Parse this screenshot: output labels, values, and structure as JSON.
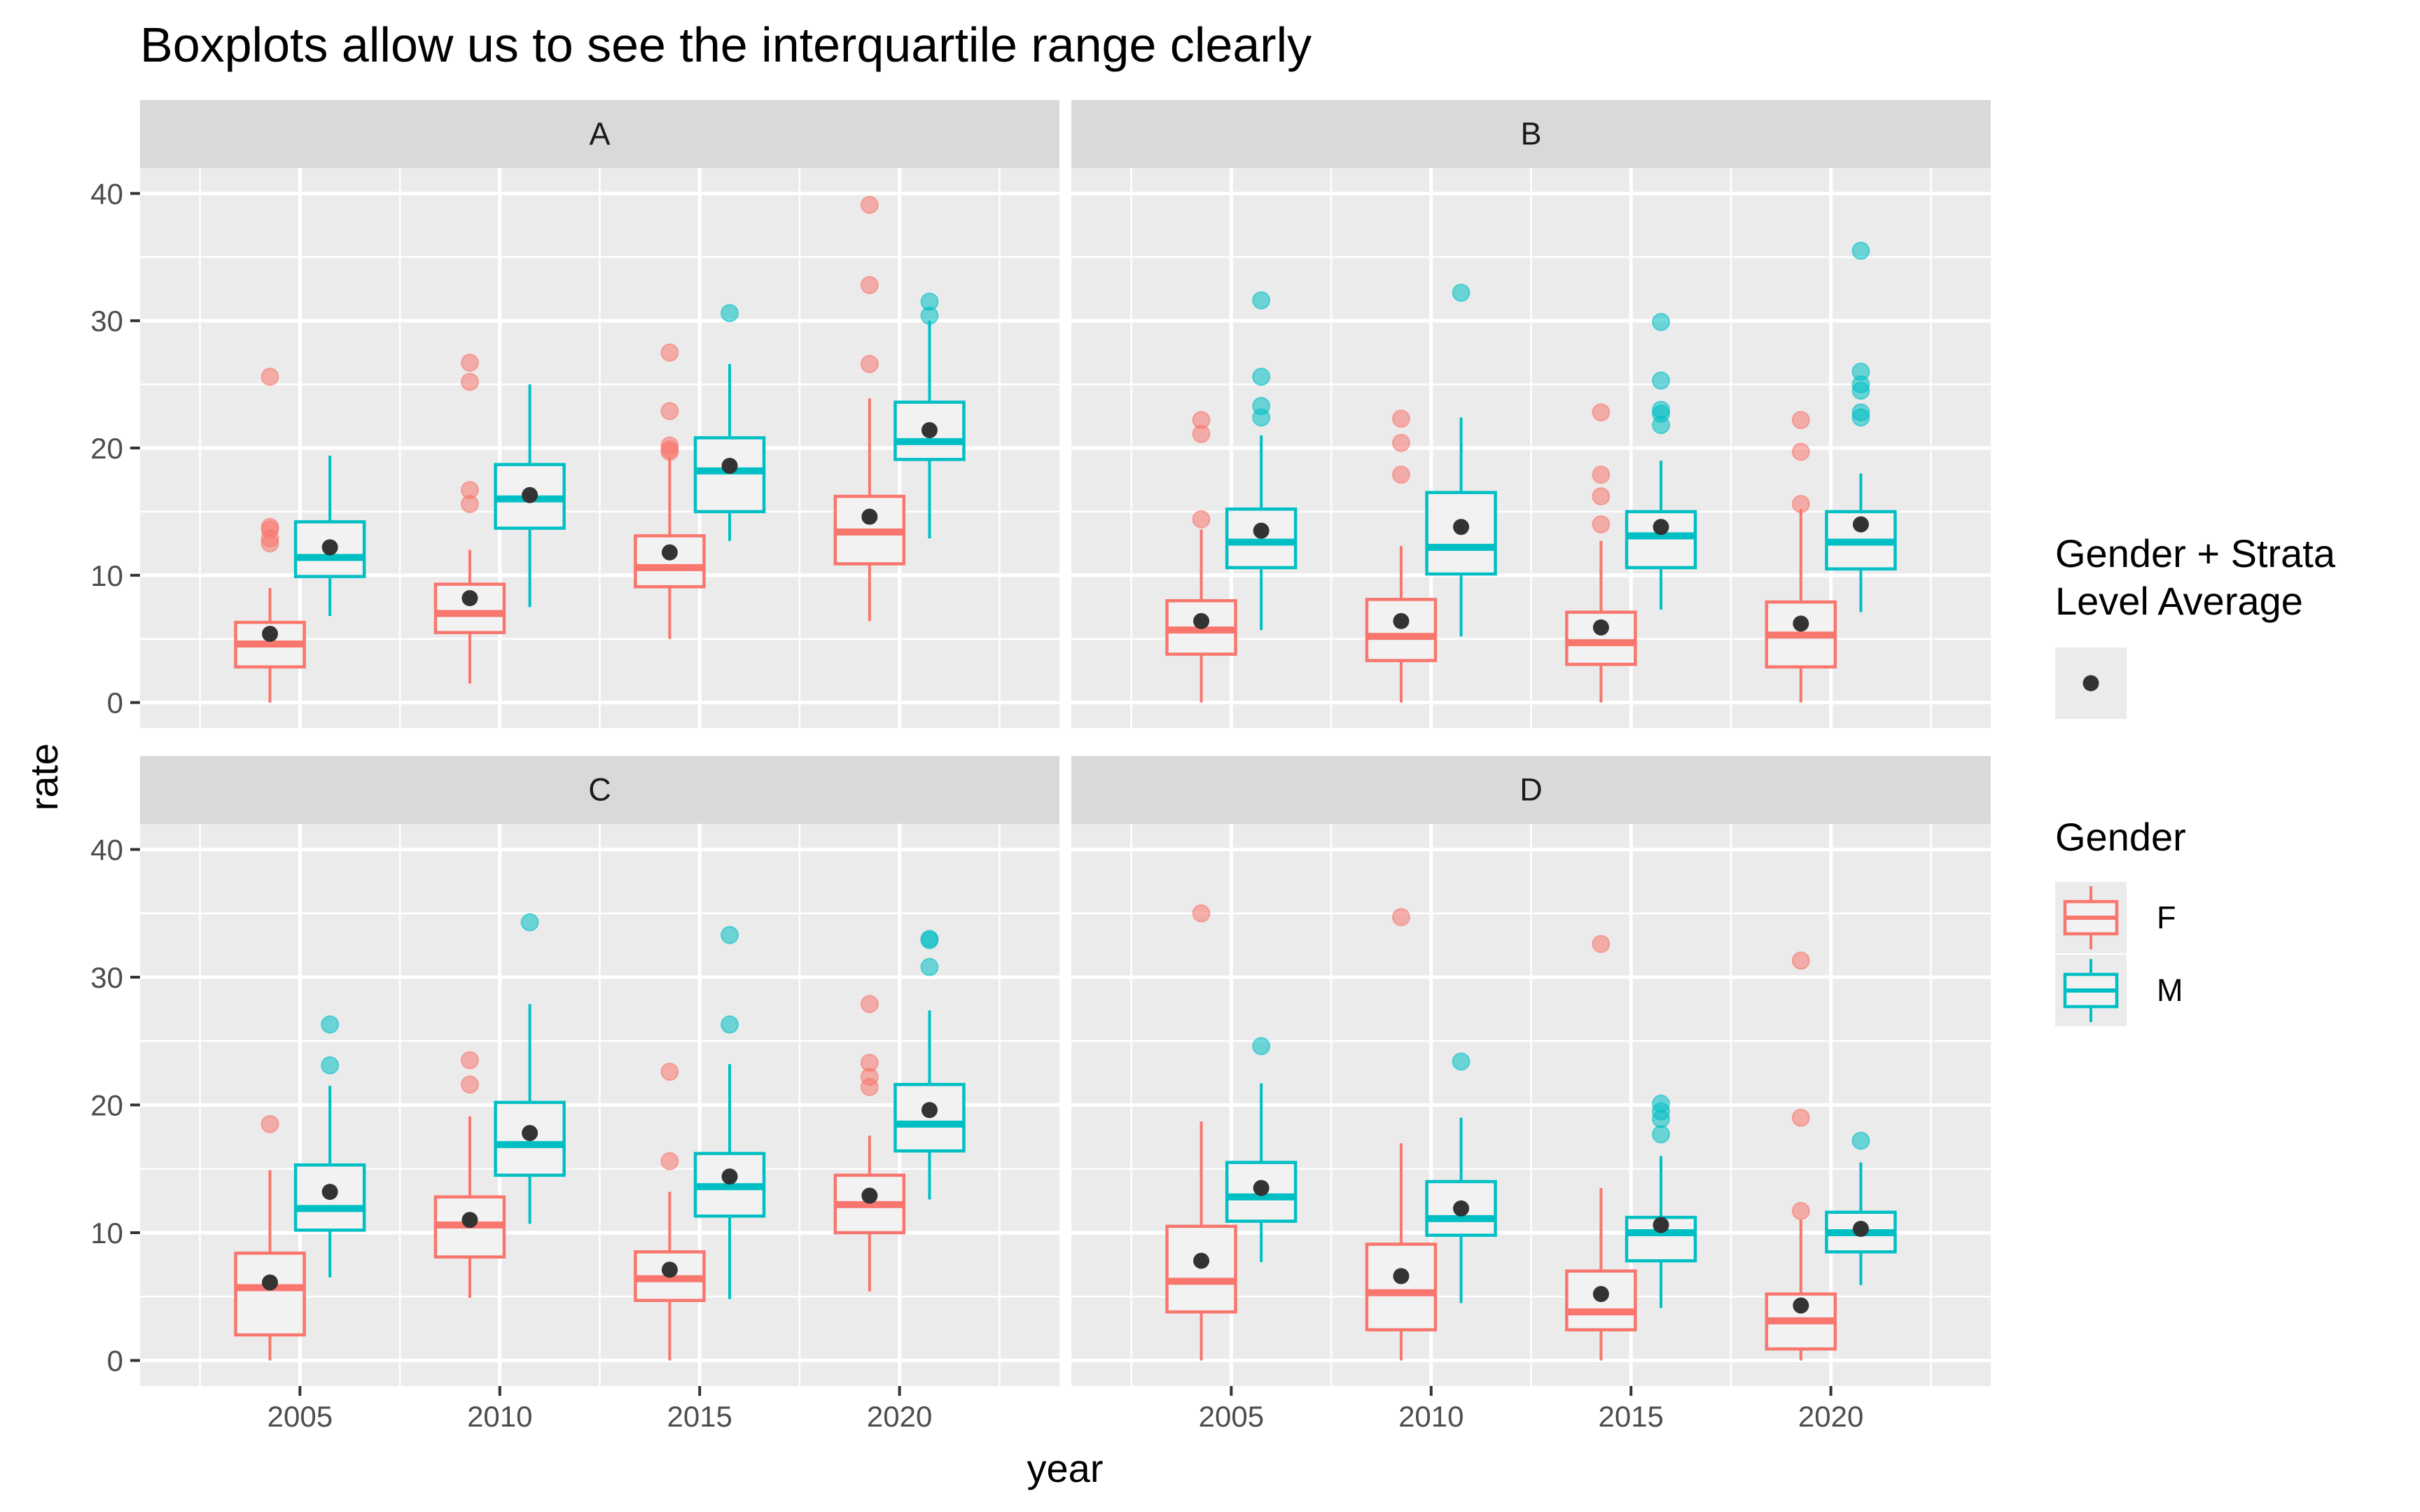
{
  "chart_data": {
    "type": "boxplot",
    "title": "Boxplots allow us to see the interquartile range clearly",
    "xlabel": "year",
    "ylabel": "rate",
    "x_ticks": [
      2005,
      2010,
      2015,
      2020
    ],
    "y_ticks": [
      0,
      10,
      20,
      30,
      40
    ],
    "ylim": [
      -2,
      42
    ],
    "xlim": [
      2001,
      2024
    ],
    "grid": true,
    "colors": {
      "F": "#F8766D",
      "M": "#00BFC4",
      "average": "#333333",
      "panel_bg": "#EBEBEB",
      "strip_bg": "#D9D9D9"
    },
    "legend": {
      "placement": "right",
      "average_title": "Gender + Strata\nLevel Average",
      "gender_title": "Gender",
      "gender_entries": [
        "F",
        "M"
      ]
    },
    "panels": [
      {
        "label": "A",
        "boxes": [
          {
            "gender": "F",
            "year": 2005,
            "min": 0,
            "q1": 2.8,
            "median": 4.6,
            "q3": 6.3,
            "max": 9,
            "mean": 5.4,
            "outliers": [
              25.6,
              13.8,
              13.6,
              12.9,
              12.5
            ]
          },
          {
            "gender": "M",
            "year": 2005,
            "min": 6.8,
            "q1": 9.9,
            "median": 11.4,
            "q3": 14.2,
            "max": 19.4,
            "mean": 12.2,
            "outliers": []
          },
          {
            "gender": "F",
            "year": 2010,
            "min": 1.5,
            "q1": 5.5,
            "median": 7.0,
            "q3": 9.3,
            "max": 12.0,
            "mean": 8.2,
            "outliers": [
              26.7,
              25.2,
              16.7,
              15.6
            ]
          },
          {
            "gender": "M",
            "year": 2010,
            "min": 7.5,
            "q1": 13.7,
            "median": 16.0,
            "q3": 18.7,
            "max": 25.0,
            "mean": 16.3,
            "outliers": []
          },
          {
            "gender": "F",
            "year": 2015,
            "min": 5.0,
            "q1": 9.1,
            "median": 10.6,
            "q3": 13.1,
            "max": 19.3,
            "mean": 11.8,
            "outliers": [
              27.5,
              22.9,
              20.2,
              19.9,
              19.7
            ]
          },
          {
            "gender": "M",
            "year": 2015,
            "min": 12.7,
            "q1": 15.0,
            "median": 18.2,
            "q3": 20.8,
            "max": 26.6,
            "mean": 18.6,
            "outliers": [
              30.6
            ]
          },
          {
            "gender": "F",
            "year": 2020,
            "min": 6.4,
            "q1": 10.9,
            "median": 13.4,
            "q3": 16.2,
            "max": 23.9,
            "mean": 14.6,
            "outliers": [
              39.1,
              32.8,
              26.6
            ]
          },
          {
            "gender": "M",
            "year": 2020,
            "min": 12.9,
            "q1": 19.1,
            "median": 20.5,
            "q3": 23.6,
            "max": 30.0,
            "mean": 21.4,
            "outliers": [
              31.5,
              30.4
            ]
          }
        ]
      },
      {
        "label": "B",
        "boxes": [
          {
            "gender": "F",
            "year": 2005,
            "min": 0,
            "q1": 3.8,
            "median": 5.7,
            "q3": 8.0,
            "max": 13.6,
            "mean": 6.4,
            "outliers": [
              22.2,
              21.1,
              14.4
            ]
          },
          {
            "gender": "M",
            "year": 2005,
            "min": 5.7,
            "q1": 10.6,
            "median": 12.6,
            "q3": 15.2,
            "max": 21.0,
            "mean": 13.5,
            "outliers": [
              31.6,
              25.6,
              23.3,
              22.4
            ]
          },
          {
            "gender": "F",
            "year": 2010,
            "min": 0,
            "q1": 3.3,
            "median": 5.2,
            "q3": 8.1,
            "max": 12.3,
            "mean": 6.4,
            "outliers": [
              22.3,
              20.4,
              17.9
            ]
          },
          {
            "gender": "M",
            "year": 2010,
            "min": 5.2,
            "q1": 10.1,
            "median": 12.2,
            "q3": 16.5,
            "max": 22.4,
            "mean": 13.8,
            "outliers": [
              32.2
            ]
          },
          {
            "gender": "F",
            "year": 2015,
            "min": 0,
            "q1": 3.0,
            "median": 4.7,
            "q3": 7.1,
            "max": 12.7,
            "mean": 5.9,
            "outliers": [
              22.8,
              17.9,
              16.2,
              14.0
            ]
          },
          {
            "gender": "M",
            "year": 2015,
            "min": 7.3,
            "q1": 10.6,
            "median": 13.1,
            "q3": 15.0,
            "max": 19.0,
            "mean": 13.8,
            "outliers": [
              29.9,
              25.3,
              23.0,
              22.7,
              21.8
            ]
          },
          {
            "gender": "F",
            "year": 2020,
            "min": 0,
            "q1": 2.8,
            "median": 5.3,
            "q3": 7.9,
            "max": 15.2,
            "mean": 6.2,
            "outliers": [
              22.2,
              19.7,
              15.6
            ]
          },
          {
            "gender": "M",
            "year": 2020,
            "min": 7.1,
            "q1": 10.5,
            "median": 12.6,
            "q3": 15.0,
            "max": 18.0,
            "mean": 14.0,
            "outliers": [
              35.5,
              26.0,
              25.0,
              24.5,
              22.8,
              22.4
            ]
          }
        ]
      },
      {
        "label": "C",
        "boxes": [
          {
            "gender": "F",
            "year": 2005,
            "min": 0,
            "q1": 2.0,
            "median": 5.7,
            "q3": 8.4,
            "max": 14.9,
            "mean": 6.1,
            "outliers": [
              18.5
            ]
          },
          {
            "gender": "M",
            "year": 2005,
            "min": 6.5,
            "q1": 10.2,
            "median": 11.9,
            "q3": 15.3,
            "max": 21.5,
            "mean": 13.2,
            "outliers": [
              26.3,
              23.1
            ]
          },
          {
            "gender": "F",
            "year": 2010,
            "min": 4.9,
            "q1": 8.1,
            "median": 10.6,
            "q3": 12.8,
            "max": 19.1,
            "mean": 11.0,
            "outliers": [
              23.5,
              21.6
            ]
          },
          {
            "gender": "M",
            "year": 2010,
            "min": 10.7,
            "q1": 14.5,
            "median": 16.9,
            "q3": 20.2,
            "max": 27.9,
            "mean": 17.8,
            "outliers": [
              34.3
            ]
          },
          {
            "gender": "F",
            "year": 2015,
            "min": 0,
            "q1": 4.7,
            "median": 6.4,
            "q3": 8.5,
            "max": 13.2,
            "mean": 7.1,
            "outliers": [
              22.6,
              15.6
            ]
          },
          {
            "gender": "M",
            "year": 2015,
            "min": 4.8,
            "q1": 11.3,
            "median": 13.6,
            "q3": 16.2,
            "max": 23.2,
            "mean": 14.4,
            "outliers": [
              33.3,
              26.3
            ]
          },
          {
            "gender": "F",
            "year": 2020,
            "min": 5.4,
            "q1": 10.0,
            "median": 12.2,
            "q3": 14.5,
            "max": 17.6,
            "mean": 12.9,
            "outliers": [
              27.9,
              23.3,
              22.2,
              21.4
            ]
          },
          {
            "gender": "M",
            "year": 2020,
            "min": 12.6,
            "q1": 16.4,
            "median": 18.5,
            "q3": 21.6,
            "max": 27.4,
            "mean": 19.6,
            "outliers": [
              33.0,
              32.9,
              30.8
            ]
          }
        ]
      },
      {
        "label": "D",
        "boxes": [
          {
            "gender": "F",
            "year": 2005,
            "min": 0,
            "q1": 3.8,
            "median": 6.2,
            "q3": 10.5,
            "max": 18.7,
            "mean": 7.8,
            "outliers": [
              35.0
            ]
          },
          {
            "gender": "M",
            "year": 2005,
            "min": 7.7,
            "q1": 10.9,
            "median": 12.8,
            "q3": 15.5,
            "max": 21.7,
            "mean": 13.5,
            "outliers": [
              24.6
            ]
          },
          {
            "gender": "F",
            "year": 2010,
            "min": 0,
            "q1": 2.4,
            "median": 5.3,
            "q3": 9.1,
            "max": 17.0,
            "mean": 6.6,
            "outliers": [
              34.7
            ]
          },
          {
            "gender": "M",
            "year": 2010,
            "min": 4.5,
            "q1": 9.8,
            "median": 11.1,
            "q3": 14.0,
            "max": 19.0,
            "mean": 11.9,
            "outliers": [
              23.4
            ]
          },
          {
            "gender": "F",
            "year": 2015,
            "min": 0,
            "q1": 2.4,
            "median": 3.8,
            "q3": 7.0,
            "max": 13.5,
            "mean": 5.2,
            "outliers": [
              32.6
            ]
          },
          {
            "gender": "M",
            "year": 2015,
            "min": 4.1,
            "q1": 7.8,
            "median": 10.0,
            "q3": 11.2,
            "max": 16.0,
            "mean": 10.6,
            "outliers": [
              20.1,
              19.5,
              18.9,
              17.7
            ]
          },
          {
            "gender": "F",
            "year": 2020,
            "min": 0,
            "q1": 0.9,
            "median": 3.1,
            "q3": 5.2,
            "max": 11.0,
            "mean": 4.3,
            "outliers": [
              31.3,
              19.0,
              11.7
            ]
          },
          {
            "gender": "M",
            "year": 2020,
            "min": 5.9,
            "q1": 8.5,
            "median": 10.0,
            "q3": 11.6,
            "max": 15.5,
            "mean": 10.3,
            "outliers": [
              17.2
            ]
          }
        ]
      }
    ]
  }
}
